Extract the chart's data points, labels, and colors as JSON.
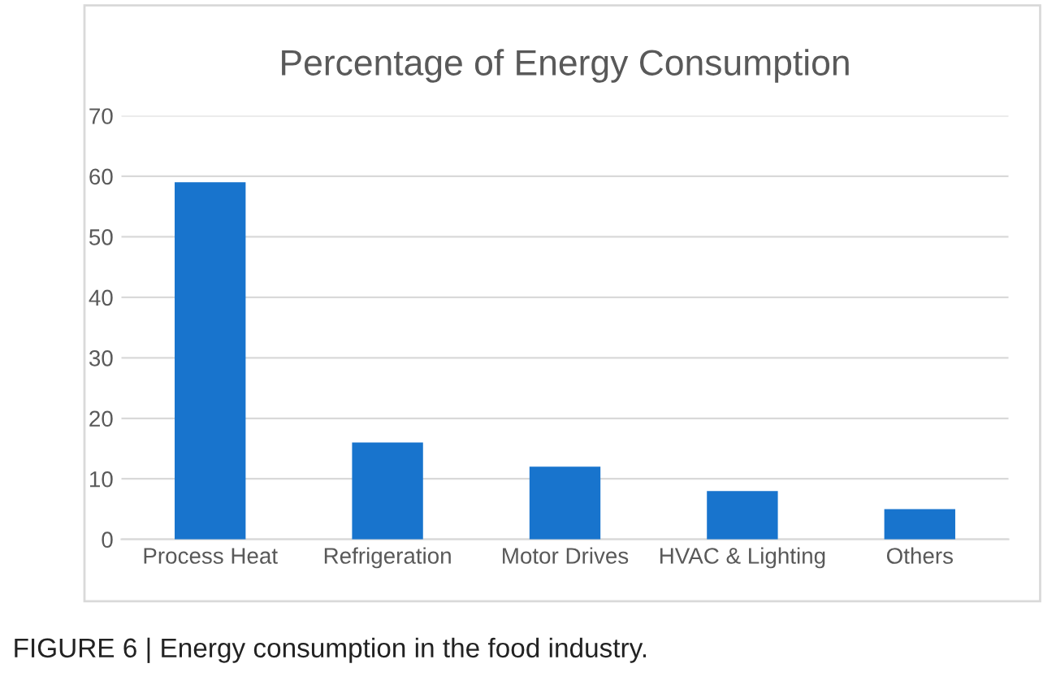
{
  "chart_data": {
    "type": "bar",
    "title": "Percentage of Energy Consumption",
    "categories": [
      "Process Heat",
      "Refrigeration",
      "Motor Drives",
      "HVAC & Lighting",
      "Others"
    ],
    "values": [
      59,
      16,
      12,
      8,
      5
    ],
    "color": "#1874cd",
    "ylim": [
      0,
      70
    ],
    "yticks": [
      0,
      10,
      20,
      30,
      40,
      50,
      60,
      70
    ],
    "grid": "y",
    "legend": false,
    "annotations": [
      "FIGURE 6 | Energy consumption in the food industry."
    ]
  }
}
